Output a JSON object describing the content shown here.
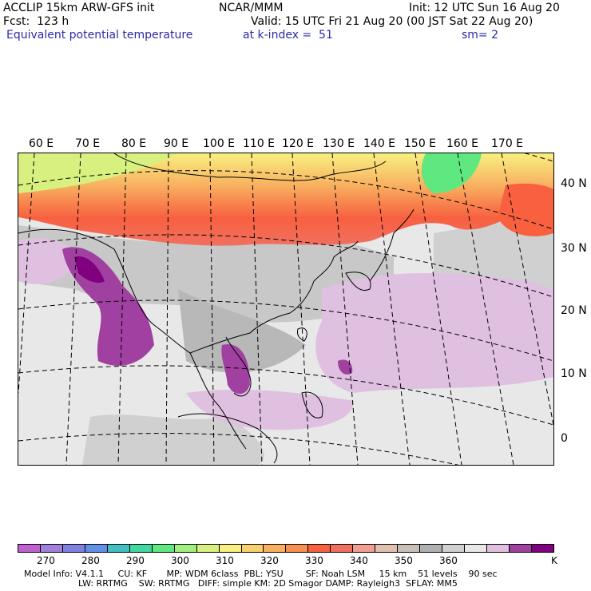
{
  "header": {
    "model": "ACCLIP 15km ARW-GFS init",
    "center": "NCAR/MMM",
    "init": "Init: 12 UTC Sun 16 Aug 20",
    "fcst": "Fcst:  123 h",
    "valid": "Valid: 15 UTC Fri 21 Aug 20 (00 JST Sat 22 Aug 20)",
    "field": "Equivalent potential temperature",
    "level": "at k-index =  51",
    "smooth": "sm= 2"
  },
  "map": {
    "lon_labels": [
      "60 E",
      "70 E",
      "80 E",
      "90 E",
      "100 E",
      "110 E",
      "120 E",
      "130 E",
      "140 E",
      "150 E",
      "160 E",
      "170 E"
    ],
    "lat_labels": [
      "40 N",
      "30 N",
      "20 N",
      "10 N",
      "0"
    ]
  },
  "colorbar": {
    "colors": [
      "#c060d0",
      "#a080d8",
      "#8080e0",
      "#6090e8",
      "#40c0c0",
      "#40d8a0",
      "#60e880",
      "#a0f080",
      "#d8f080",
      "#f8f080",
      "#f8d070",
      "#f8b060",
      "#f89050",
      "#f86040",
      "#f07060",
      "#f0a090",
      "#e0c0b0",
      "#c8c0b8",
      "#b0b0b0",
      "#d0d0d0",
      "#e8e8e8",
      "#e0c0e0",
      "#a040a0",
      "#800080"
    ],
    "labels": [
      "270",
      "280",
      "290",
      "300",
      "310",
      "320",
      "330",
      "340",
      "350",
      "360",
      "K"
    ]
  },
  "footer": {
    "line1": "Model Info: V4.1.1     CU: KF       MP: WDM 6class  PBL: YSU        SF: Noah LSM     15 km    51 levels    90 sec",
    "line2": "LW: RRTMG    SW: RRTMG   DIFF: simple KM: 2D Smagor DAMP: Rayleigh3  SFLAY: MM5"
  }
}
